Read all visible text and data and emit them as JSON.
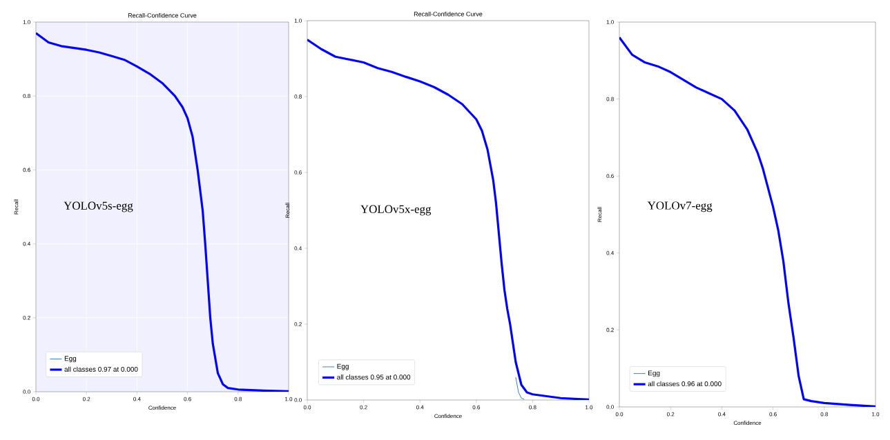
{
  "chart_data": [
    {
      "type": "line",
      "title": "Recall-Confidence Curve",
      "xlabel": "Confidence",
      "ylabel": "Recall",
      "annotations": [
        "YOLOv5s-egg"
      ],
      "grid": true,
      "legend": "bottom left",
      "xlim": [
        0,
        1
      ],
      "ylim": [
        0,
        1
      ],
      "xticks": [
        {
          "value": 0,
          "label": "0.0"
        },
        {
          "value": 0.2,
          "label": "0.2"
        },
        {
          "value": 0.4,
          "label": "0.4"
        },
        {
          "value": 0.6,
          "label": "0.6"
        },
        {
          "value": 0.8,
          "label": "0.8"
        },
        {
          "value": 1,
          "label": "1.0"
        }
      ],
      "yticks": [
        {
          "value": 0,
          "label": "0.0"
        },
        {
          "value": 0.2,
          "label": "0.2"
        },
        {
          "value": 0.4,
          "label": "0.4"
        },
        {
          "value": 0.6,
          "label": "0.6"
        },
        {
          "value": 0.8,
          "label": "0.8"
        },
        {
          "value": 1,
          "label": "1.0"
        }
      ],
      "x": [
        0,
        0.05,
        0.1,
        0.2,
        0.25,
        0.3,
        0.35,
        0.4,
        0.45,
        0.5,
        0.55,
        0.58,
        0.6,
        0.62,
        0.64,
        0.66,
        0.67,
        0.68,
        0.69,
        0.7,
        0.72,
        0.74,
        0.76,
        0.8,
        0.9,
        1.0
      ],
      "series": [
        {
          "name": "Egg",
          "color": "#1f77b4",
          "values": [
            null,
            null,
            null,
            null,
            null,
            null,
            null,
            null,
            null,
            null,
            null,
            null,
            null,
            null,
            null,
            null,
            null,
            null,
            null,
            null,
            null,
            null,
            null,
            null,
            null,
            null
          ]
        },
        {
          "name": "all classes 0.97 at 0.000",
          "color": "#0000ff",
          "values": [
            0.97,
            0.945,
            0.935,
            0.925,
            0.918,
            0.908,
            0.898,
            0.88,
            0.86,
            0.835,
            0.8,
            0.77,
            0.74,
            0.69,
            0.6,
            0.49,
            0.4,
            0.3,
            0.2,
            0.13,
            0.05,
            0.02,
            0.01,
            0.006,
            0.003,
            0.001
          ]
        }
      ]
    },
    {
      "type": "line",
      "title": "Recall-Confidence Curve",
      "xlabel": "Confidence",
      "ylabel": "Recall",
      "annotations": [
        "YOLOv5x-egg"
      ],
      "legend": "bottom left",
      "xlim": [
        0,
        1
      ],
      "ylim": [
        0,
        1
      ],
      "xticks": [
        {
          "value": 0,
          "label": "0.0"
        },
        {
          "value": 0.2,
          "label": "0.2"
        },
        {
          "value": 0.4,
          "label": "0.4"
        },
        {
          "value": 0.6,
          "label": "0.6"
        },
        {
          "value": 0.8,
          "label": "0.8"
        },
        {
          "value": 1,
          "label": "1.0"
        }
      ],
      "yticks": [
        {
          "value": 0,
          "label": "0.0"
        },
        {
          "value": 0.2,
          "label": "0.2"
        },
        {
          "value": 0.4,
          "label": "0.4"
        },
        {
          "value": 0.6,
          "label": "0.6"
        },
        {
          "value": 0.8,
          "label": "0.8"
        },
        {
          "value": 1,
          "label": "1.0"
        }
      ],
      "x": [
        0,
        0.05,
        0.1,
        0.2,
        0.25,
        0.3,
        0.35,
        0.4,
        0.45,
        0.5,
        0.55,
        0.6,
        0.62,
        0.64,
        0.66,
        0.67,
        0.68,
        0.69,
        0.7,
        0.71,
        0.72,
        0.74,
        0.76,
        0.78,
        0.8,
        0.85,
        0.9,
        1.0
      ],
      "series": [
        {
          "name": "Egg",
          "color": "#1f77b4",
          "x": [
            0.74,
            0.75,
            0.76,
            0.77
          ],
          "values": [
            0.06,
            0.02,
            0.005,
            0.002
          ]
        },
        {
          "name": "all classes 0.95 at 0.000",
          "color": "#0000ff",
          "values": [
            0.95,
            0.925,
            0.905,
            0.89,
            0.875,
            0.865,
            0.852,
            0.84,
            0.825,
            0.805,
            0.78,
            0.74,
            0.71,
            0.66,
            0.58,
            0.52,
            0.44,
            0.36,
            0.29,
            0.24,
            0.2,
            0.1,
            0.04,
            0.02,
            0.015,
            0.01,
            0.005,
            0.001
          ]
        }
      ]
    },
    {
      "type": "line",
      "xlabel": "Confidence",
      "ylabel": "Recall",
      "annotations": [
        "YOLOv7-egg"
      ],
      "legend": "bottom left",
      "xlim": [
        0,
        1
      ],
      "ylim": [
        0,
        1
      ],
      "xticks": [
        {
          "value": 0,
          "label": "0.0"
        },
        {
          "value": 0.2,
          "label": "0.2"
        },
        {
          "value": 0.4,
          "label": "0.4"
        },
        {
          "value": 0.6,
          "label": "0.6"
        },
        {
          "value": 0.8,
          "label": "0.8"
        },
        {
          "value": 1,
          "label": "1.0"
        }
      ],
      "yticks": [
        {
          "value": 0,
          "label": "0.0"
        },
        {
          "value": 0.2,
          "label": "0.2"
        },
        {
          "value": 0.4,
          "label": "0.4"
        },
        {
          "value": 0.6,
          "label": "0.6"
        },
        {
          "value": 0.8,
          "label": "0.8"
        },
        {
          "value": 1,
          "label": "1.0"
        }
      ],
      "x": [
        0,
        0.05,
        0.1,
        0.15,
        0.2,
        0.25,
        0.3,
        0.35,
        0.4,
        0.45,
        0.5,
        0.54,
        0.56,
        0.58,
        0.6,
        0.62,
        0.64,
        0.66,
        0.68,
        0.7,
        0.72,
        0.75,
        0.8,
        0.9,
        1.0
      ],
      "series": [
        {
          "name": "Egg",
          "color": "#1f77b4",
          "values": [
            null,
            null,
            null,
            null,
            null,
            null,
            null,
            null,
            null,
            null,
            null,
            null,
            null,
            null,
            null,
            null,
            null,
            null,
            null,
            null,
            null,
            null,
            null,
            null,
            null
          ]
        },
        {
          "name": "all classes 0.96 at 0.000",
          "color": "#0000ff",
          "values": [
            0.96,
            0.915,
            0.895,
            0.885,
            0.87,
            0.85,
            0.83,
            0.815,
            0.8,
            0.77,
            0.72,
            0.66,
            0.62,
            0.57,
            0.52,
            0.46,
            0.38,
            0.27,
            0.18,
            0.08,
            0.02,
            0.015,
            0.01,
            0.005,
            0.001
          ]
        }
      ]
    }
  ]
}
